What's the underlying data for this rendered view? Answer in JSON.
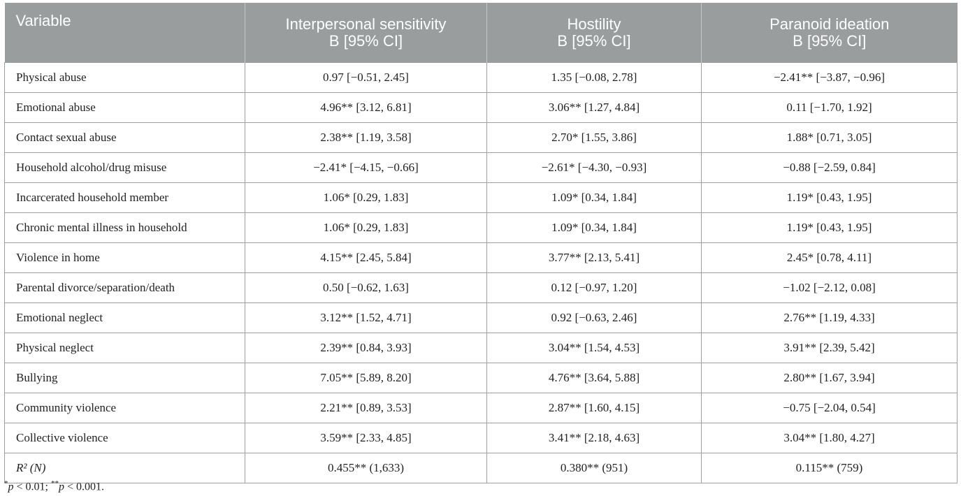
{
  "headers": {
    "variable": "Variable",
    "col1_line1": "Interpersonal sensitivity",
    "col1_line2": "B [95% CI]",
    "col2_line1": "Hostility",
    "col2_line2": "B [95% CI]",
    "col3_line1": "Paranoid ideation",
    "col3_line2": "B [95% CI]"
  },
  "rows": [
    {
      "variable": "Physical abuse",
      "interpersonal": "0.97 [−0.51, 2.45]",
      "hostility": "1.35 [−0.08, 2.78]",
      "paranoid": "−2.41** [−3.87, −0.96]"
    },
    {
      "variable": "Emotional abuse",
      "interpersonal": "4.96** [3.12, 6.81]",
      "hostility": "3.06** [1.27, 4.84]",
      "paranoid": "0.11 [−1.70, 1.92]"
    },
    {
      "variable": "Contact sexual abuse",
      "interpersonal": "2.38** [1.19, 3.58]",
      "hostility": "2.70* [1.55, 3.86]",
      "paranoid": "1.88* [0.71, 3.05]"
    },
    {
      "variable": "Household alcohol/drug misuse",
      "interpersonal": "−2.41* [−4.15, −0.66]",
      "hostility": "−2.61* [−4.30, −0.93]",
      "paranoid": "−0.88 [−2.59, 0.84]"
    },
    {
      "variable": "Incarcerated household member",
      "interpersonal": "1.06* [0.29, 1.83]",
      "hostility": "1.09* [0.34, 1.84]",
      "paranoid": "1.19* [0.43, 1.95]"
    },
    {
      "variable": "Chronic mental illness in household",
      "interpersonal": "1.06* [0.29, 1.83]",
      "hostility": "1.09* [0.34, 1.84]",
      "paranoid": "1.19* [0.43, 1.95]"
    },
    {
      "variable": "Violence in home",
      "interpersonal": "4.15** [2.45, 5.84]",
      "hostility": "3.77** [2.13, 5.41]",
      "paranoid": "2.45* [0.78, 4.11]"
    },
    {
      "variable": "Parental divorce/separation/death",
      "interpersonal": "0.50 [−0.62, 1.63]",
      "hostility": "0.12 [−0.97, 1.20]",
      "paranoid": "−1.02 [−2.12, 0.08]"
    },
    {
      "variable": "Emotional neglect",
      "interpersonal": "3.12** [1.52, 4.71]",
      "hostility": "0.92 [−0.63, 2.46]",
      "paranoid": "2.76** [1.19, 4.33]"
    },
    {
      "variable": "Physical neglect",
      "interpersonal": "2.39** [0.84, 3.93]",
      "hostility": "3.04** [1.54, 4.53]",
      "paranoid": "3.91** [2.39, 5.42]"
    },
    {
      "variable": "Bullying",
      "interpersonal": "7.05** [5.89, 8.20]",
      "hostility": "4.76** [3.64, 5.88]",
      "paranoid": "2.80** [1.67, 3.94]"
    },
    {
      "variable": "Community violence",
      "interpersonal": "2.21** [0.89, 3.53]",
      "hostility": "2.87** [1.60, 4.15]",
      "paranoid": "−0.75 [−2.04, 0.54]"
    },
    {
      "variable": "Collective violence",
      "interpersonal": "3.59** [2.33, 4.85]",
      "hostility": "3.41** [2.18, 4.63]",
      "paranoid": "3.04** [1.80, 4.27]"
    }
  ],
  "summary": {
    "variable": "R² (N)",
    "interpersonal": "0.455** (1,633)",
    "hostility": "0.380** (951)",
    "paranoid": "0.115** (759)"
  },
  "footnote": {
    "sym1": "*",
    "p1": "p",
    "text1": " < 0.01; ",
    "sym2": "**",
    "p2": "p",
    "text2": " < 0.001."
  }
}
